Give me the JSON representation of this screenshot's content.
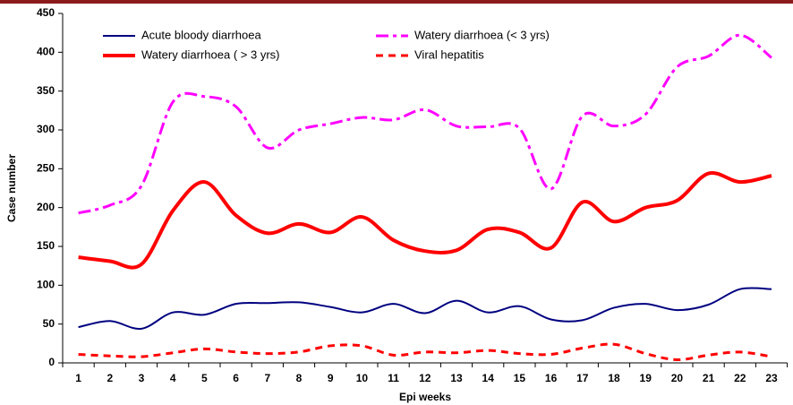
{
  "chart_data": {
    "type": "line",
    "xlabel": "Epi weeks",
    "ylabel": "Case number",
    "categories": [
      "1",
      "2",
      "3",
      "4",
      "5",
      "6",
      "7",
      "8",
      "9",
      "10",
      "11",
      "12",
      "13",
      "14",
      "15",
      "16",
      "17",
      "18",
      "19",
      "20",
      "21",
      "22",
      "23"
    ],
    "ylim": [
      0,
      450
    ],
    "yticks": [
      0,
      50,
      100,
      150,
      200,
      250,
      300,
      350,
      400,
      450
    ],
    "series": [
      {
        "name": "Acute bloody diarrhoea",
        "color": "#000080",
        "dash": "solid",
        "width": 2,
        "values": [
          46,
          54,
          44,
          65,
          62,
          76,
          77,
          78,
          72,
          65,
          76,
          64,
          80,
          65,
          73,
          56,
          55,
          71,
          76,
          68,
          75,
          95,
          95
        ]
      },
      {
        "name": "Watery diarrhoea (< 3 yrs)",
        "color": "#ff00ff",
        "dash": "dashdot",
        "width": 3,
        "values": [
          193,
          203,
          228,
          336,
          343,
          330,
          277,
          300,
          308,
          316,
          313,
          326,
          305,
          304,
          302,
          224,
          318,
          305,
          320,
          381,
          395,
          422,
          393
        ]
      },
      {
        "name": "Watery diarrhoea ( > 3 yrs)",
        "color": "#ff0000",
        "dash": "solid",
        "width": 4,
        "values": [
          136,
          131,
          127,
          196,
          233,
          190,
          167,
          179,
          168,
          188,
          158,
          144,
          145,
          172,
          168,
          148,
          207,
          182,
          200,
          209,
          244,
          233,
          241
        ]
      },
      {
        "name": "Viral hepatitis",
        "color": "#ff0000",
        "dash": "dash",
        "width": 3,
        "values": [
          11,
          9,
          8,
          13,
          18,
          14,
          12,
          14,
          22,
          22,
          10,
          14,
          13,
          16,
          12,
          11,
          19,
          24,
          12,
          4,
          10,
          14,
          8
        ]
      }
    ]
  }
}
